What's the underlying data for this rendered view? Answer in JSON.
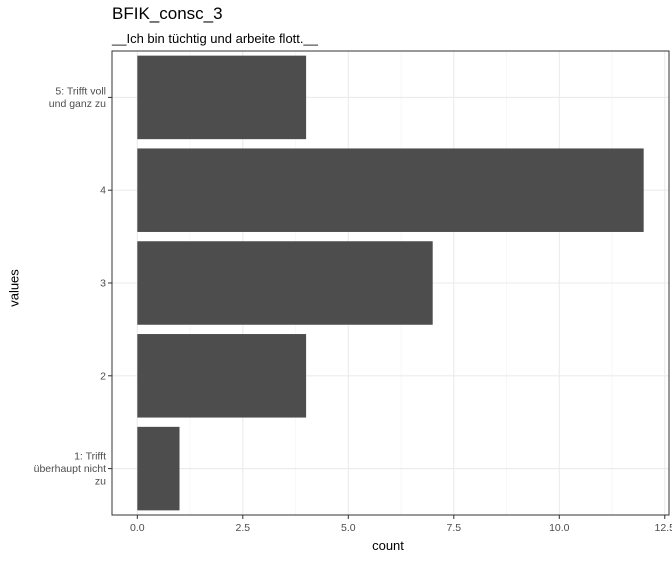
{
  "chart_data": {
    "type": "bar",
    "orientation": "horizontal",
    "title": "BFIK_consc_3",
    "subtitle": "__Ich bin tüchtig und arbeite flott.__",
    "xlabel": "count",
    "ylabel": "values",
    "categories": [
      "1: Trifft überhaupt nicht zu",
      "2",
      "3",
      "4",
      "5: Trifft voll und ganz zu"
    ],
    "category_label_lines": [
      [
        "1: Trifft",
        "überhaupt nicht",
        "zu"
      ],
      [
        "2"
      ],
      [
        "3"
      ],
      [
        "4"
      ],
      [
        "5: Trifft voll",
        "und ganz zu"
      ]
    ],
    "values": [
      1,
      4,
      7,
      12,
      4
    ],
    "xlim": [
      -0.6,
      12.6
    ],
    "x_ticks": [
      0,
      2.5,
      5,
      7.5,
      10,
      12.5
    ],
    "x_tick_labels": [
      "0.0",
      "2.5",
      "5.0",
      "7.5",
      "10.0",
      "12.5"
    ],
    "grid": true,
    "bar_color": "#4d4d4d"
  }
}
